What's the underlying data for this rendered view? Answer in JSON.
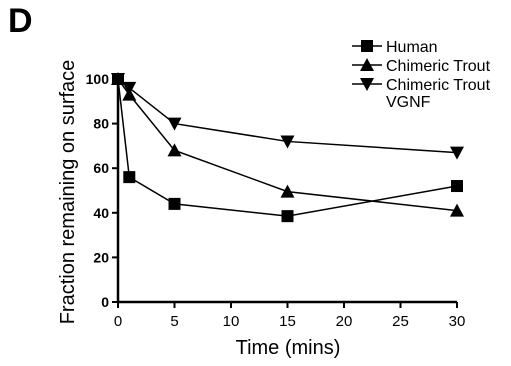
{
  "panel_label": "D",
  "chart_data": {
    "type": "line",
    "title": "",
    "xlabel": "Time (mins)",
    "ylabel": "Fraction remaining on surface",
    "xlim": [
      0,
      30
    ],
    "ylim": [
      0,
      100
    ],
    "x_ticks": [
      0,
      5,
      10,
      15,
      20,
      25,
      30
    ],
    "y_ticks": [
      0,
      20,
      40,
      60,
      80,
      100
    ],
    "grid": false,
    "legend_position": "top-right",
    "series": [
      {
        "name": "Human",
        "marker": "square",
        "x": [
          0,
          1,
          5,
          15,
          30
        ],
        "values": [
          100,
          56,
          44,
          38.5,
          52
        ]
      },
      {
        "name": "Chimeric Trout",
        "marker": "triangle-up",
        "x": [
          0,
          1,
          5,
          15,
          30
        ],
        "values": [
          100,
          93,
          68,
          49.5,
          41
        ]
      },
      {
        "name": "Chimeric Trout VGNF",
        "marker": "triangle-down",
        "x": [
          0,
          1,
          5,
          15,
          30
        ],
        "values": [
          100,
          96,
          80,
          72,
          67
        ]
      }
    ]
  }
}
